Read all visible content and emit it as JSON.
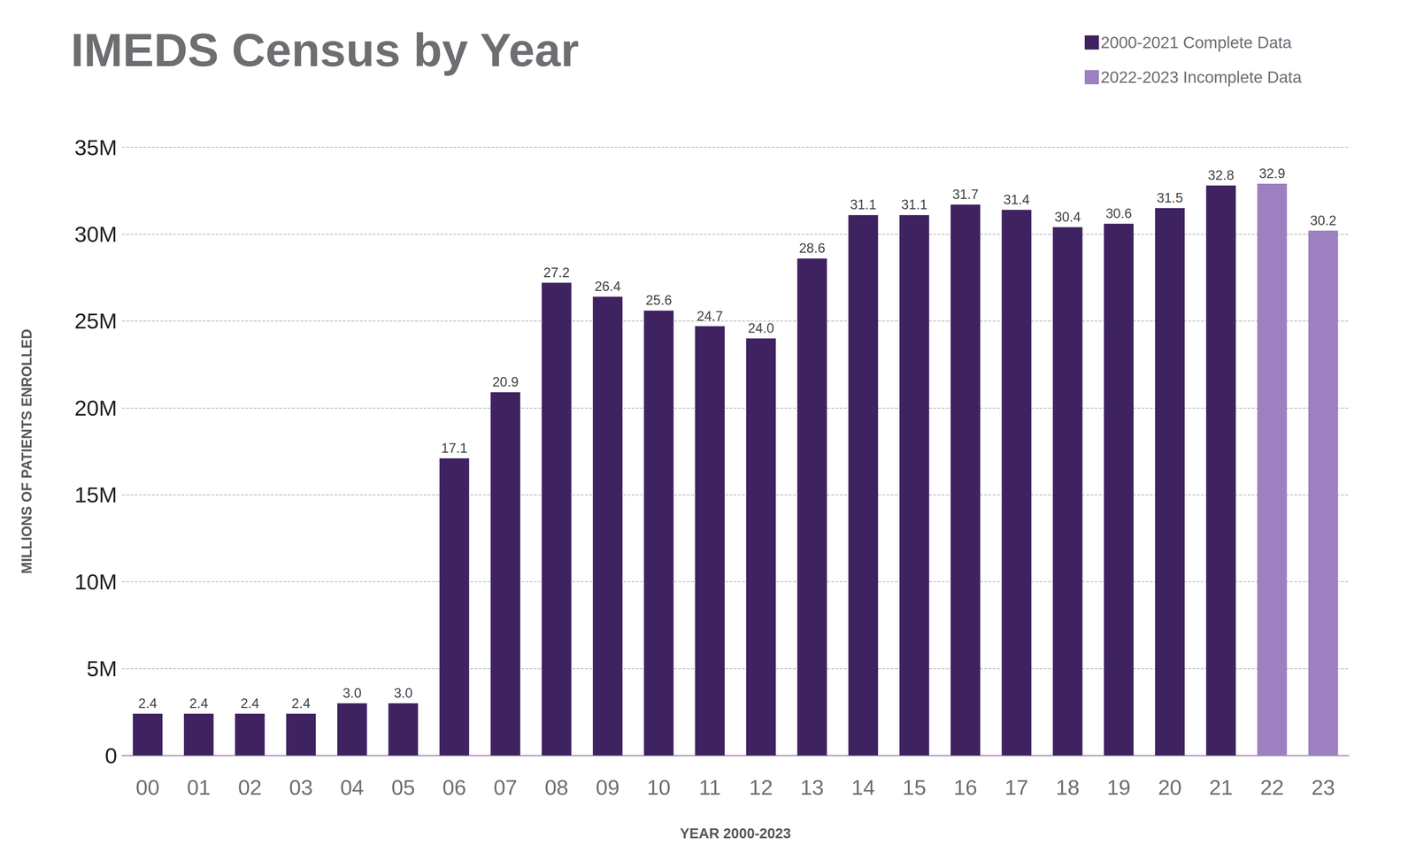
{
  "chart_data": {
    "type": "bar",
    "title": "IMEDS Census by Year",
    "x_label": "YEAR 2000-2023",
    "y_label": "MILLIONS OF PATIENTS ENROLLED",
    "categories": [
      "00",
      "01",
      "02",
      "03",
      "04",
      "05",
      "06",
      "07",
      "08",
      "09",
      "10",
      "11",
      "12",
      "13",
      "14",
      "15",
      "16",
      "17",
      "18",
      "19",
      "20",
      "21",
      "22",
      "23"
    ],
    "series": [
      {
        "name": "2000-2021 Complete Data",
        "color": "#3f2260",
        "values": [
          2.4,
          2.4,
          2.4,
          2.4,
          3.0,
          3.0,
          17.1,
          20.9,
          27.2,
          26.4,
          25.6,
          24.7,
          24.0,
          28.6,
          31.1,
          31.1,
          31.7,
          31.4,
          30.4,
          30.6,
          31.5,
          32.8,
          null,
          null
        ],
        "value_labels": [
          "2.4",
          "2.4",
          "2.4",
          "2.4",
          "3.0",
          "3.0",
          "17.1",
          "20.9",
          "27.2",
          "26.4",
          "25.6",
          "24.7",
          "24.0",
          "28.6",
          "31.1",
          "31.1",
          "31.7",
          "31.4",
          "30.4",
          "30.6",
          "31.5",
          "32.8",
          null,
          null
        ]
      },
      {
        "name": "2022-2023 Incomplete Data",
        "color": "#9d80bf",
        "values": [
          null,
          null,
          null,
          null,
          null,
          null,
          null,
          null,
          null,
          null,
          null,
          null,
          null,
          null,
          null,
          null,
          null,
          null,
          null,
          null,
          null,
          null,
          32.9,
          30.2
        ],
        "value_labels": [
          null,
          null,
          null,
          null,
          null,
          null,
          null,
          null,
          null,
          null,
          null,
          null,
          null,
          null,
          null,
          null,
          null,
          null,
          null,
          null,
          null,
          null,
          "32.9",
          "30.2"
        ]
      }
    ],
    "ylim": [
      0,
      35
    ],
    "yticks": [
      0,
      {
        "value": 5,
        "label": "5M"
      },
      {
        "value": 10,
        "label": "10M"
      },
      {
        "value": 15,
        "label": "15M"
      },
      {
        "value": 20,
        "label": "20M"
      },
      {
        "value": 25,
        "label": "25M"
      },
      {
        "value": 30,
        "label": "30M"
      },
      {
        "value": 35,
        "label": "35M"
      }
    ],
    "grid": true,
    "legend": "top-right",
    "data_labels": true
  }
}
